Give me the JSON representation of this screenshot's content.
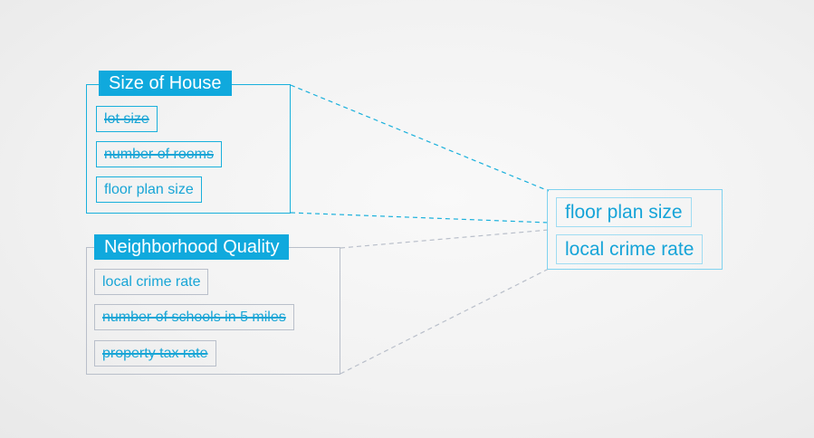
{
  "groups": {
    "size_of_house": {
      "title": "Size of House",
      "features": [
        {
          "label": "lot size",
          "eliminated": true
        },
        {
          "label": "number of rooms",
          "eliminated": true
        },
        {
          "label": "floor plan size",
          "eliminated": false
        }
      ]
    },
    "neighborhood_quality": {
      "title": "Neighborhood Quality",
      "features": [
        {
          "label": "local crime rate",
          "eliminated": false
        },
        {
          "label": "number of schools in 5 miles",
          "eliminated": true
        },
        {
          "label": "property tax rate",
          "eliminated": true
        }
      ]
    }
  },
  "result": {
    "features": [
      "floor plan size",
      "local crime rate"
    ]
  },
  "colors": {
    "accent": "#10a9dd",
    "text": "#18a5d6",
    "grey_border": "#b9bfca",
    "background": "#f2f2f2"
  }
}
